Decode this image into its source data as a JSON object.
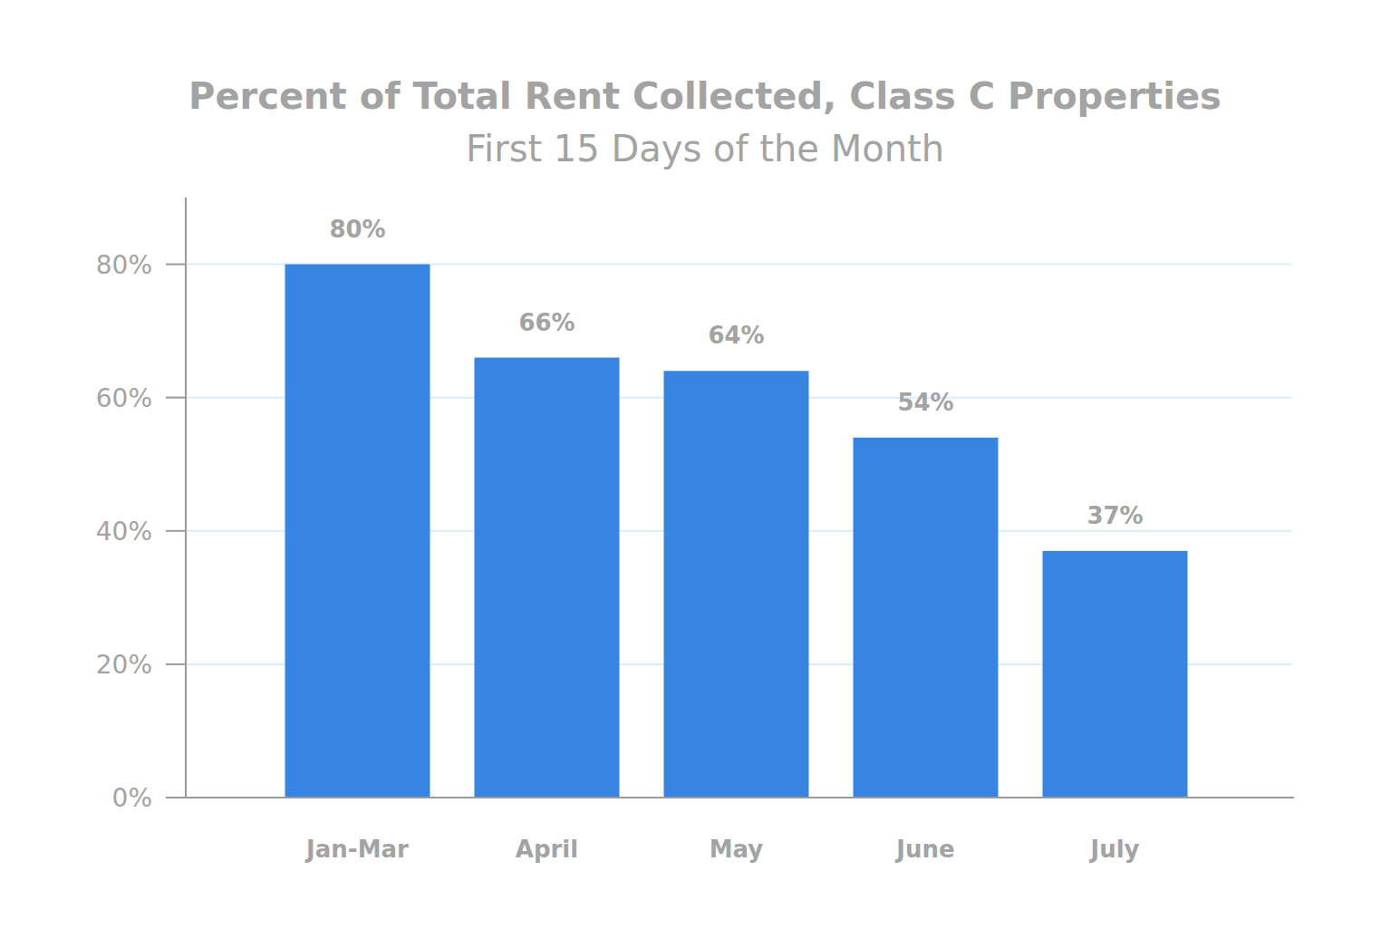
{
  "chart_data": {
    "type": "bar",
    "title": "Percent of Total Rent Collected, Class C Properties",
    "subtitle": "First 15 Days of the Month",
    "categories": [
      "Jan-Mar",
      "April",
      "May",
      "June",
      "July"
    ],
    "values": [
      80,
      66,
      64,
      54,
      37
    ],
    "value_labels": [
      "80%",
      "66%",
      "64%",
      "54%",
      "37%"
    ],
    "color": "#3784e3",
    "ylim": [
      0,
      90
    ],
    "yticks": [
      {
        "value": 0,
        "label": "0%"
      },
      {
        "value": 20,
        "label": "20%"
      },
      {
        "value": 40,
        "label": "40%"
      },
      {
        "value": 60,
        "label": "60%"
      },
      {
        "value": 80,
        "label": "80%"
      }
    ],
    "grid": true,
    "data_labels": true
  }
}
